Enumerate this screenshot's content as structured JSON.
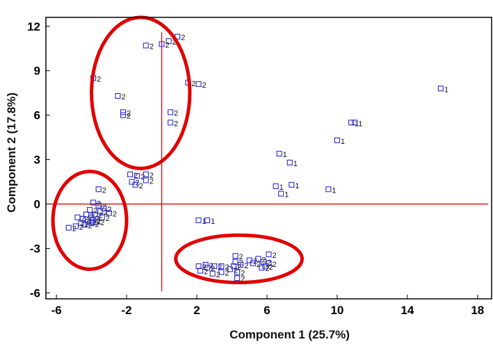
{
  "chart_data": {
    "type": "scatter",
    "title": "",
    "xlabel": "Component 1 (25.7%)",
    "ylabel": "Component 2 (17.8%)",
    "xlim": [
      -6.6,
      18.8
    ],
    "ylim": [
      -6.4,
      12.6
    ],
    "xticks": [
      -6,
      -2,
      2,
      6,
      10,
      14,
      18
    ],
    "yticks": [
      -6,
      -3,
      0,
      3,
      6,
      9,
      12
    ],
    "grid": false,
    "legend": "none",
    "colors": {
      "marker": "#2a2ad0",
      "reference_line": "#e00000",
      "ellipse": "#e00000",
      "frame": "#000000"
    },
    "reference_lines": {
      "x": 0,
      "y": 0
    },
    "series": [
      {
        "marker": "square",
        "points": [
          {
            "x": 15.9,
            "y": 7.8,
            "label": "1"
          },
          {
            "x": 10.8,
            "y": 5.5,
            "label": "1"
          },
          {
            "x": 11.0,
            "y": 5.5,
            "label": "1"
          },
          {
            "x": 10.0,
            "y": 4.3,
            "label": "1"
          },
          {
            "x": 6.7,
            "y": 3.4,
            "label": "1"
          },
          {
            "x": 7.3,
            "y": 2.8,
            "label": "1"
          },
          {
            "x": 6.5,
            "y": 1.2,
            "label": "1"
          },
          {
            "x": 7.4,
            "y": 1.3,
            "label": "1"
          },
          {
            "x": 6.8,
            "y": 0.7,
            "label": "1"
          },
          {
            "x": 9.5,
            "y": 1.0,
            "label": "1"
          },
          {
            "x": 2.1,
            "y": -1.1,
            "label": "1"
          },
          {
            "x": 2.6,
            "y": -1.1,
            "label": "1"
          },
          {
            "x": 0.9,
            "y": 11.3,
            "label": "2"
          },
          {
            "x": 0.4,
            "y": 11.0,
            "label": "2"
          },
          {
            "x": 0.0,
            "y": 10.8,
            "label": "2"
          },
          {
            "x": -0.9,
            "y": 10.7,
            "label": "2"
          },
          {
            "x": -3.9,
            "y": 8.5,
            "label": "2"
          },
          {
            "x": 1.5,
            "y": 8.2,
            "label": "2"
          },
          {
            "x": 2.1,
            "y": 8.1,
            "label": "2"
          },
          {
            "x": -2.5,
            "y": 7.3,
            "label": "2"
          },
          {
            "x": -2.2,
            "y": 6.2,
            "label": "2"
          },
          {
            "x": -2.2,
            "y": 6.0,
            "label": "2"
          },
          {
            "x": 0.5,
            "y": 6.2,
            "label": "2"
          },
          {
            "x": 0.5,
            "y": 5.5,
            "label": "2"
          },
          {
            "x": -1.8,
            "y": 2.0,
            "label": "2"
          },
          {
            "x": -1.4,
            "y": 1.9,
            "label": "2"
          },
          {
            "x": -0.9,
            "y": 2.0,
            "label": "2"
          },
          {
            "x": -1.7,
            "y": 1.5,
            "label": "2"
          },
          {
            "x": -0.9,
            "y": 1.6,
            "label": "2"
          },
          {
            "x": -1.5,
            "y": 1.3,
            "label": "2"
          },
          {
            "x": -3.6,
            "y": 1.0,
            "label": "2"
          },
          {
            "x": -3.9,
            "y": 0.1,
            "label": "2"
          },
          {
            "x": -3.6,
            "y": -0.1,
            "label": "2"
          },
          {
            "x": -3.3,
            "y": -0.3,
            "label": "2"
          },
          {
            "x": -4.1,
            "y": -0.4,
            "label": "2"
          },
          {
            "x": -3.5,
            "y": -0.5,
            "label": "2"
          },
          {
            "x": -3.0,
            "y": -0.6,
            "label": "2"
          },
          {
            "x": -4.3,
            "y": -0.7,
            "label": "2"
          },
          {
            "x": -3.8,
            "y": -0.7,
            "label": "2"
          },
          {
            "x": -4.8,
            "y": -0.9,
            "label": "2"
          },
          {
            "x": -4.0,
            "y": -0.9,
            "label": "2"
          },
          {
            "x": -3.4,
            "y": -0.9,
            "label": "2"
          },
          {
            "x": -4.5,
            "y": -1.0,
            "label": "2"
          },
          {
            "x": -3.9,
            "y": -1.1,
            "label": "2"
          },
          {
            "x": -4.2,
            "y": -1.2,
            "label": "2"
          },
          {
            "x": -3.7,
            "y": -1.2,
            "label": "2"
          },
          {
            "x": -4.6,
            "y": -1.3,
            "label": "2"
          },
          {
            "x": -4.0,
            "y": -1.3,
            "label": "2"
          },
          {
            "x": -4.4,
            "y": -1.4,
            "label": "2"
          },
          {
            "x": -4.9,
            "y": -1.5,
            "label": "2"
          },
          {
            "x": -5.3,
            "y": -1.6,
            "label": "2"
          },
          {
            "x": 4.2,
            "y": -3.5,
            "label": "2"
          },
          {
            "x": 6.1,
            "y": -3.4,
            "label": "2"
          },
          {
            "x": 5.5,
            "y": -3.7,
            "label": "2"
          },
          {
            "x": 5.0,
            "y": -3.8,
            "label": "2"
          },
          {
            "x": 4.2,
            "y": -3.9,
            "label": "2"
          },
          {
            "x": 5.8,
            "y": -3.9,
            "label": "2"
          },
          {
            "x": 5.2,
            "y": -4.0,
            "label": "2"
          },
          {
            "x": 6.1,
            "y": -4.0,
            "label": "2"
          },
          {
            "x": 2.5,
            "y": -4.1,
            "label": "2"
          },
          {
            "x": 4.5,
            "y": -4.1,
            "label": "2"
          },
          {
            "x": 5.9,
            "y": -4.2,
            "label": "2"
          },
          {
            "x": 2.1,
            "y": -4.2,
            "label": "2"
          },
          {
            "x": 3.0,
            "y": -4.2,
            "label": "2"
          },
          {
            "x": 3.4,
            "y": -4.2,
            "label": "2"
          },
          {
            "x": 4.1,
            "y": -4.2,
            "label": "2"
          },
          {
            "x": 5.7,
            "y": -4.3,
            "label": "2"
          },
          {
            "x": 2.6,
            "y": -4.3,
            "label": "2"
          },
          {
            "x": 3.9,
            "y": -4.4,
            "label": "2"
          },
          {
            "x": 2.2,
            "y": -4.5,
            "label": "2"
          },
          {
            "x": 3.4,
            "y": -4.6,
            "label": "2"
          },
          {
            "x": 4.3,
            "y": -4.6,
            "label": "2"
          },
          {
            "x": 2.9,
            "y": -4.7,
            "label": "2"
          },
          {
            "x": 4.3,
            "y": -5.0,
            "label": "2"
          }
        ]
      }
    ],
    "annotations": [
      {
        "shape": "ellipse",
        "color": "#e00000",
        "cx": -1.2,
        "cy": 7.5,
        "rx": 2.8,
        "ry": 5.1
      },
      {
        "shape": "ellipse",
        "color": "#e00000",
        "cx": -4.1,
        "cy": -1.1,
        "rx": 2.1,
        "ry": 3.3
      },
      {
        "shape": "ellipse",
        "color": "#e00000",
        "cx": 4.4,
        "cy": -3.7,
        "rx": 3.6,
        "ry": 1.6
      }
    ]
  }
}
